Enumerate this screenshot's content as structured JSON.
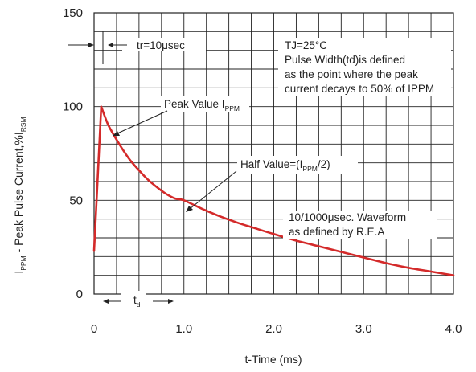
{
  "chart_data": {
    "type": "line",
    "xlabel": "t-Time (ms)",
    "ylabel_parts": {
      "main_prefix": "I",
      "main_sub": "PPM",
      "middle": " - Peak Pulse Current,%I",
      "end_sub": "RSM"
    },
    "xlim": [
      0,
      4.0
    ],
    "ylim": [
      0,
      150
    ],
    "x_ticks": [
      {
        "value": 0,
        "label": "0"
      },
      {
        "value": 1.0,
        "label": "1.0"
      },
      {
        "value": 2.0,
        "label": "2.0"
      },
      {
        "value": 3.0,
        "label": "3.0"
      },
      {
        "value": 4.0,
        "label": "4.0"
      }
    ],
    "y_ticks": [
      {
        "value": 0,
        "label": "0"
      },
      {
        "value": 50,
        "label": "50"
      },
      {
        "value": 100,
        "label": "100"
      },
      {
        "value": 150,
        "label": "150"
      }
    ],
    "grid": true,
    "series": [
      {
        "color": "#d42a2a",
        "x": [
          0,
          0.08,
          0.15,
          0.2,
          0.3,
          0.4,
          0.5,
          0.6,
          0.7,
          0.8,
          0.9,
          1.0,
          1.2,
          1.4,
          1.6,
          1.8,
          2.0,
          2.25,
          2.5,
          2.75,
          3.0,
          3.25,
          3.5,
          3.75,
          4.0
        ],
        "y": [
          23,
          100,
          91,
          86.5,
          78.5,
          71.5,
          66,
          61,
          57,
          53.5,
          51,
          50,
          45.5,
          41.5,
          38,
          35,
          32,
          28.5,
          25.5,
          22.5,
          19.5,
          16.5,
          14,
          12,
          10
        ]
      }
    ],
    "annotations": {
      "tr": "tr=10μsec",
      "tj_lines": [
        "TJ=25°C",
        "Pulse Width(td)is defined",
        "as the point where the peak",
        "current decays to 50% of IPPM"
      ],
      "peak_prefix": "Peak Value I",
      "peak_sub": "PPM",
      "half_prefix": "Half Value=(I",
      "half_sub": "PPM",
      "half_suffix": "/2)",
      "waveform_lines": [
        "10/1000μsec. Waveform",
        "as defined by R.E.A"
      ],
      "td_prefix": "t",
      "td_sub": "d"
    }
  }
}
